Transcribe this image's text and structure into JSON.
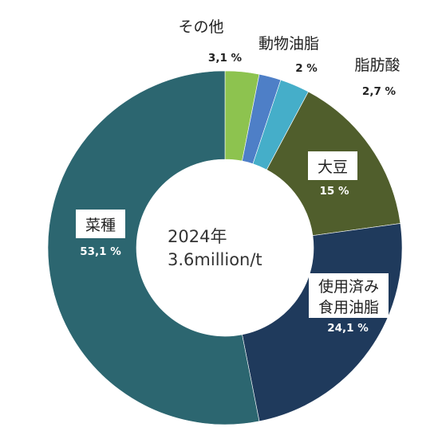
{
  "chart_data": {
    "type": "pie",
    "center_label": [
      "2024年",
      "3.6million/t"
    ],
    "slices": [
      {
        "label": "その他",
        "value_label": "3,1 %",
        "value": 3.1,
        "color": "#8dc34f"
      },
      {
        "label": "動物油脂",
        "value_label": "2 %",
        "value": 2.0,
        "color": "#4e7fc7"
      },
      {
        "label": "脂肪酸",
        "value_label": "2,7 %",
        "value": 2.7,
        "color": "#45aec9"
      },
      {
        "label": "大豆",
        "value_label": "15 %",
        "value": 15.0,
        "color": "#505e2c"
      },
      {
        "label": "使用済み食用油脂",
        "label_lines": [
          "使用済み",
          "食用油脂"
        ],
        "value_label": "24,1 %",
        "value": 24.1,
        "color": "#1f3a5c"
      },
      {
        "label": "菜種",
        "value_label": "53,1 %",
        "value": 53.1,
        "color": "#2c6670"
      }
    ]
  }
}
